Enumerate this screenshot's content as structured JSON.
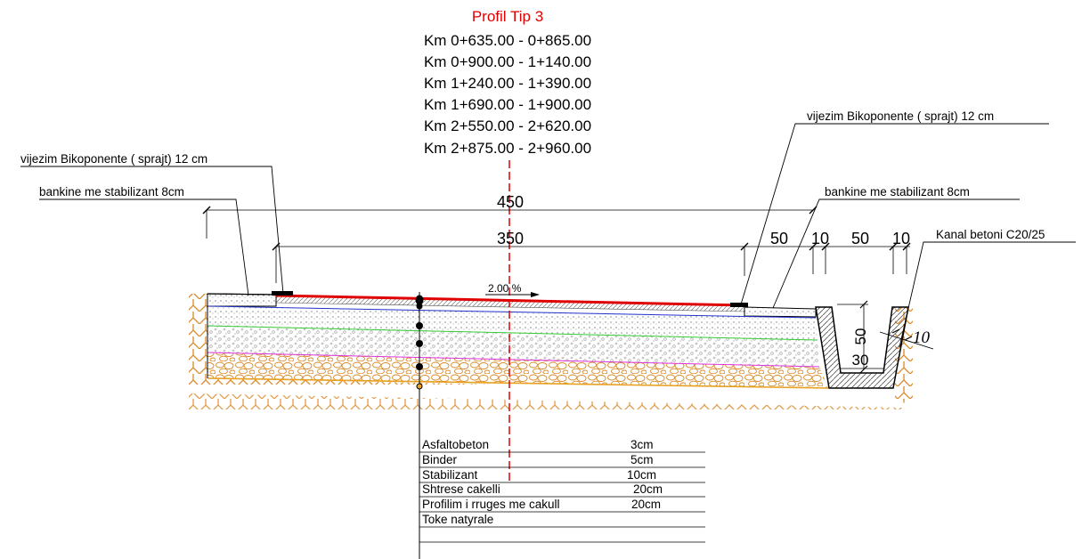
{
  "title": "Profil Tip 3",
  "km_ranges": [
    "Km 0+635.00 - 0+865.00",
    "Km 0+900.00 - 1+140.00",
    "Km 1+240.00 - 1+390.00",
    "Km 1+690.00 - 1+900.00",
    "Km 2+550.00 - 2+620.00",
    "Km 2+875.00 - 2+960.00"
  ],
  "labels": {
    "marking_left": "vijezim Bikoponente ( sprajt)  12 cm",
    "marking_right": "vijezim Bikoponente ( sprajt)  12 cm",
    "shoulder_left": "bankine me stabilizant 8cm",
    "shoulder_right": "bankine me stabilizant 8cm",
    "channel": "Kanal betoni C20/25"
  },
  "dimensions": {
    "total_width": "450",
    "carriageway": "350",
    "right_50a": "50",
    "right_10a": "10",
    "right_50b": "50",
    "right_10b": "10",
    "channel_depth": "50",
    "channel_bottom": "30",
    "channel_wall": "10"
  },
  "slope": "2.00 %",
  "layers": [
    {
      "name": "Asfaltobeton",
      "thickness": "3cm"
    },
    {
      "name": "Binder",
      "thickness": "5cm"
    },
    {
      "name": "Stabilizant",
      "thickness": "10cm"
    },
    {
      "name": "Shtrese cakelli",
      "thickness": "20cm"
    },
    {
      "name": "Profilim i rruges me cakull",
      "thickness": "20cm"
    },
    {
      "name": "Toke natyrale",
      "thickness": ""
    }
  ],
  "colors": {
    "axis": "#e00000",
    "asphalt": "#e00000",
    "layer_blue": "#2233cc",
    "layer_green": "#33cc33",
    "layer_magenta": "#dd33dd",
    "layer_orange": "#e8a020",
    "soil": "#d98a2a"
  }
}
